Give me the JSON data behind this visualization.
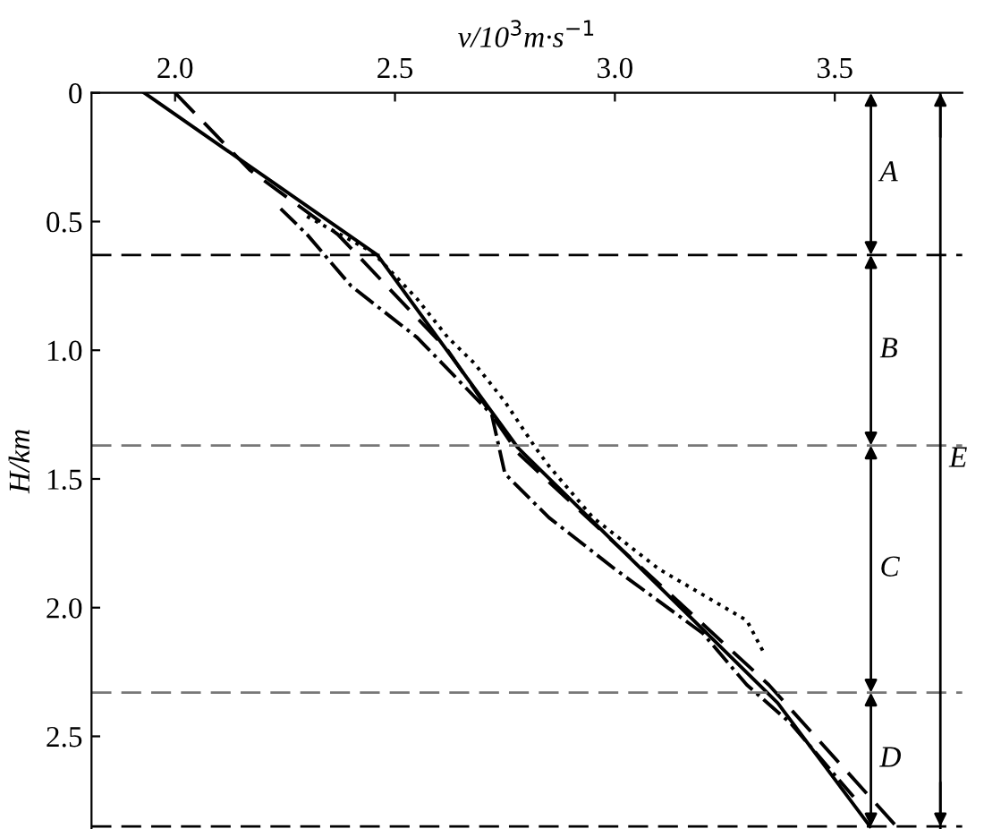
{
  "chart_data": {
    "type": "line",
    "xlabel": "v/10$^{3}$m·s$^{−1}$",
    "ylabel": "H/km",
    "xlim": [
      1.81,
      3.79
    ],
    "ylim": [
      2.86,
      0
    ],
    "xticks": [
      {
        "value": 2,
        "label": "2.0"
      },
      2.5,
      {
        "value": 3,
        "label": "3.0"
      },
      3.5
    ],
    "yticks": [
      0,
      0.5,
      {
        "value": 1,
        "label": "1.0"
      },
      1.5,
      {
        "value": 2,
        "label": "2.0"
      },
      2.5
    ],
    "grid": false,
    "legend": false,
    "series": [
      {
        "color": "#000000",
        "line_style": "solid",
        "x": [
          1.93,
          2.46,
          2.78,
          3.37,
          3.58
        ],
        "values": [
          0,
          0.63,
          1.38,
          2.37,
          2.85
        ]
      },
      {
        "color": "#000000",
        "line_style": "dashed",
        "x": [
          2.0,
          2.17,
          2.37,
          2.62,
          2.78,
          3.0,
          3.35,
          3.64
        ],
        "values": [
          0,
          0.3,
          0.55,
          1.0,
          1.4,
          1.75,
          2.3,
          2.85
        ]
      },
      {
        "color": "#000000",
        "line_style": "dotted",
        "x": [
          2.3,
          2.45,
          2.55,
          2.62,
          2.68,
          2.75,
          2.82,
          2.85,
          2.95,
          3.1,
          3.3,
          3.34
        ],
        "values": [
          0.48,
          0.62,
          0.8,
          0.95,
          1.05,
          1.2,
          1.38,
          1.45,
          1.65,
          1.85,
          2.05,
          2.18
        ]
      },
      {
        "color": "#000000",
        "line_style": "dashdot",
        "x": [
          2.24,
          2.3,
          2.4,
          2.55,
          2.72,
          2.75,
          2.85,
          3.0,
          3.2,
          3.3,
          3.4,
          3.55
        ],
        "values": [
          0.45,
          0.55,
          0.75,
          0.95,
          1.25,
          1.48,
          1.65,
          1.85,
          2.1,
          2.3,
          2.45,
          2.75
        ]
      }
    ],
    "ref_lines": [
      {
        "axis": "y",
        "value": 0.63,
        "line_style": "dashed",
        "color": "#000000"
      },
      {
        "axis": "y",
        "value": 1.37,
        "line_style": "dashed",
        "color": "#777777"
      },
      {
        "axis": "y",
        "value": 2.33,
        "line_style": "dashed",
        "color": "#777777"
      },
      {
        "axis": "y",
        "value": 2.85,
        "line_style": "dashed",
        "color": "#000000"
      },
      {
        "axis": "x",
        "value": 3.74,
        "line_style": "solid",
        "color": "#000000",
        "label": "E"
      }
    ],
    "annotations": [
      "A",
      "B",
      "C",
      "D"
    ]
  }
}
